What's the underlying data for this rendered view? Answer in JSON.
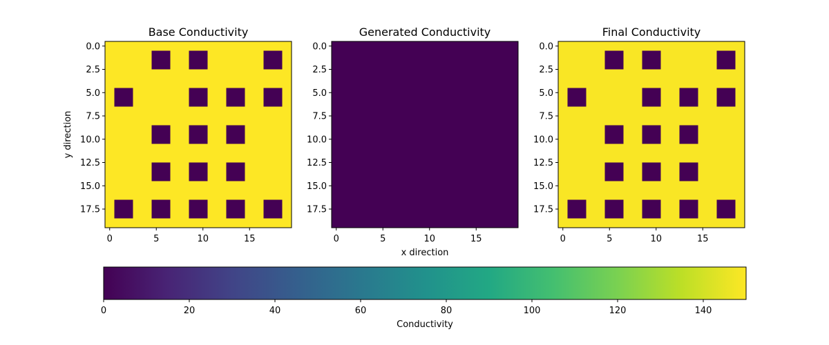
{
  "chart_data": [
    {
      "type": "heatmap",
      "title": "Base Conductivity",
      "xlabel": "",
      "ylabel": "y direction",
      "grid_size": [
        20,
        20
      ],
      "xlim": [
        -0.5,
        19.5
      ],
      "ylim": [
        19.5,
        -0.5
      ],
      "xticks": [
        0,
        5,
        10,
        15
      ],
      "xtick_labels": [
        "0",
        "5",
        "10",
        "15"
      ],
      "yticks": [
        0,
        2.5,
        5,
        7.5,
        10,
        12.5,
        15,
        17.5
      ],
      "ytick_labels": [
        "0.0",
        "2.5",
        "5.0",
        "7.5",
        "10.0",
        "12.5",
        "15.0",
        "17.5"
      ],
      "background_value": 150,
      "blocks": [
        {
          "x": [
            5,
            6
          ],
          "y": [
            1,
            2
          ],
          "value": 0
        },
        {
          "x": [
            9,
            10
          ],
          "y": [
            1,
            2
          ],
          "value": 0
        },
        {
          "x": [
            17,
            18
          ],
          "y": [
            1,
            2
          ],
          "value": 0
        },
        {
          "x": [
            1,
            2
          ],
          "y": [
            5,
            6
          ],
          "value": 0
        },
        {
          "x": [
            9,
            10
          ],
          "y": [
            5,
            6
          ],
          "value": 0
        },
        {
          "x": [
            13,
            14
          ],
          "y": [
            5,
            6
          ],
          "value": 0
        },
        {
          "x": [
            17,
            18
          ],
          "y": [
            5,
            6
          ],
          "value": 0
        },
        {
          "x": [
            5,
            6
          ],
          "y": [
            9,
            10
          ],
          "value": 0
        },
        {
          "x": [
            9,
            10
          ],
          "y": [
            9,
            10
          ],
          "value": 0
        },
        {
          "x": [
            13,
            14
          ],
          "y": [
            9,
            10
          ],
          "value": 0
        },
        {
          "x": [
            5,
            6
          ],
          "y": [
            13,
            14
          ],
          "value": 0
        },
        {
          "x": [
            9,
            10
          ],
          "y": [
            13,
            14
          ],
          "value": 0
        },
        {
          "x": [
            13,
            14
          ],
          "y": [
            13,
            14
          ],
          "value": 0
        },
        {
          "x": [
            1,
            2
          ],
          "y": [
            17,
            18
          ],
          "value": 0
        },
        {
          "x": [
            5,
            6
          ],
          "y": [
            17,
            18
          ],
          "value": 0
        },
        {
          "x": [
            9,
            10
          ],
          "y": [
            17,
            18
          ],
          "value": 0
        },
        {
          "x": [
            13,
            14
          ],
          "y": [
            17,
            18
          ],
          "value": 0
        },
        {
          "x": [
            17,
            18
          ],
          "y": [
            17,
            18
          ],
          "value": 0
        }
      ]
    },
    {
      "type": "heatmap",
      "title": "Generated Conductivity",
      "xlabel": "x direction",
      "ylabel": "",
      "grid_size": [
        20,
        20
      ],
      "xlim": [
        -0.5,
        19.5
      ],
      "ylim": [
        19.5,
        -0.5
      ],
      "xticks": [
        0,
        5,
        10,
        15
      ],
      "xtick_labels": [
        "0",
        "5",
        "10",
        "15"
      ],
      "yticks": [
        0,
        2.5,
        5,
        7.5,
        10,
        12.5,
        15,
        17.5
      ],
      "ytick_labels": [
        "0.0",
        "2.5",
        "5.0",
        "7.5",
        "10.0",
        "12.5",
        "15.0",
        "17.5"
      ],
      "background_value": 0,
      "blocks": []
    },
    {
      "type": "heatmap",
      "title": "Final Conductivity",
      "xlabel": "",
      "ylabel": "",
      "grid_size": [
        20,
        20
      ],
      "xlim": [
        -0.5,
        19.5
      ],
      "ylim": [
        19.5,
        -0.5
      ],
      "xticks": [
        0,
        5,
        10,
        15
      ],
      "xtick_labels": [
        "0",
        "5",
        "10",
        "15"
      ],
      "yticks": [
        0,
        2.5,
        5,
        7.5,
        10,
        12.5,
        15,
        17.5
      ],
      "ytick_labels": [
        "0.0",
        "2.5",
        "5.0",
        "7.5",
        "10.0",
        "12.5",
        "15.0",
        "17.5"
      ],
      "background_value": 149,
      "blocks": [
        {
          "x": [
            5,
            6
          ],
          "y": [
            1,
            2
          ],
          "value": 0
        },
        {
          "x": [
            9,
            10
          ],
          "y": [
            1,
            2
          ],
          "value": 0
        },
        {
          "x": [
            17,
            18
          ],
          "y": [
            1,
            2
          ],
          "value": 0
        },
        {
          "x": [
            1,
            2
          ],
          "y": [
            5,
            6
          ],
          "value": 0
        },
        {
          "x": [
            9,
            10
          ],
          "y": [
            5,
            6
          ],
          "value": 0
        },
        {
          "x": [
            13,
            14
          ],
          "y": [
            5,
            6
          ],
          "value": 0
        },
        {
          "x": [
            17,
            18
          ],
          "y": [
            5,
            6
          ],
          "value": 0
        },
        {
          "x": [
            5,
            6
          ],
          "y": [
            9,
            10
          ],
          "value": 0
        },
        {
          "x": [
            9,
            10
          ],
          "y": [
            9,
            10
          ],
          "value": 0
        },
        {
          "x": [
            13,
            14
          ],
          "y": [
            9,
            10
          ],
          "value": 0
        },
        {
          "x": [
            5,
            6
          ],
          "y": [
            13,
            14
          ],
          "value": 0
        },
        {
          "x": [
            9,
            10
          ],
          "y": [
            13,
            14
          ],
          "value": 0
        },
        {
          "x": [
            13,
            14
          ],
          "y": [
            13,
            14
          ],
          "value": 0
        },
        {
          "x": [
            1,
            2
          ],
          "y": [
            17,
            18
          ],
          "value": 0
        },
        {
          "x": [
            5,
            6
          ],
          "y": [
            17,
            18
          ],
          "value": 0
        },
        {
          "x": [
            9,
            10
          ],
          "y": [
            17,
            18
          ],
          "value": 0
        },
        {
          "x": [
            13,
            14
          ],
          "y": [
            17,
            18
          ],
          "value": 0
        },
        {
          "x": [
            17,
            18
          ],
          "y": [
            17,
            18
          ],
          "value": 0
        }
      ]
    }
  ],
  "colorbar": {
    "label": "Conductivity",
    "colormap": "viridis",
    "range": [
      0,
      150
    ],
    "ticks": [
      0,
      20,
      40,
      60,
      80,
      100,
      120,
      140
    ],
    "tick_labels": [
      "0",
      "20",
      "40",
      "60",
      "80",
      "100",
      "120",
      "140"
    ]
  }
}
